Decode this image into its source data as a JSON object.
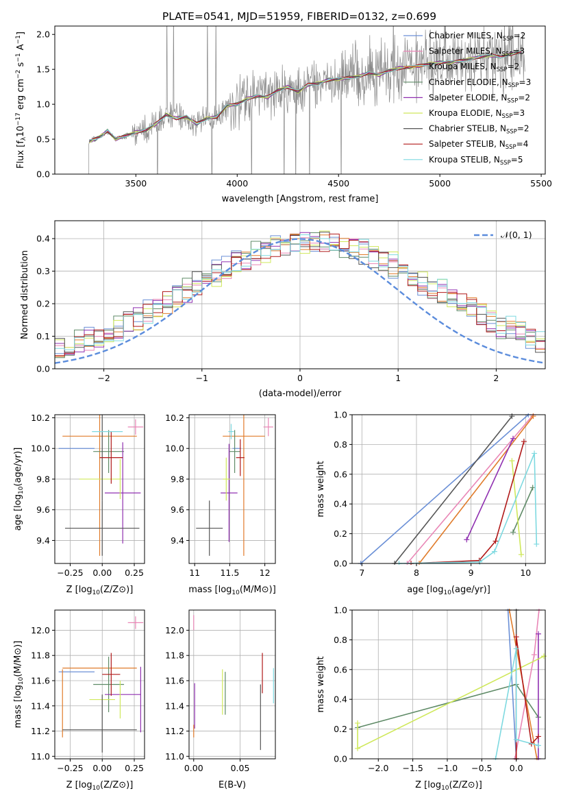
{
  "figure_title": "PLATE=0541, MJD=51959, FIBERID=0132, z=0.699",
  "colors": {
    "Chabrier MILES": "#6a8fd6",
    "Salpeter MILES": "#e986b6",
    "Kroupa MILES": "#e07b2a",
    "Chabrier ELODIE": "#5e8a66",
    "Salpeter ELODIE": "#8f2fb0",
    "Kroupa ELODIE": "#cfe85a",
    "Chabrier STELIB": "#555555",
    "Salpeter STELIB": "#b01818",
    "Kroupa STELIB": "#7dd9e0",
    "data": "#888888",
    "normal": "#5b8cdc",
    "grid": "#b0b0b0"
  },
  "chart_data": [
    {
      "id": "spectrum",
      "type": "line",
      "xlabel": "wavelength [Angstrom, rest frame]",
      "ylabel": "Flux [f_λ 10^-17 erg cm^-2 s^-1 A^-1]",
      "xlim": [
        3100,
        5520
      ],
      "ylim": [
        0,
        2.12
      ],
      "xticks": [
        3500,
        4000,
        4500,
        5000,
        5500
      ],
      "yticks": [
        0.0,
        0.5,
        1.0,
        1.5,
        2.0
      ],
      "grid": false,
      "legend_position": "top-right",
      "legend": [
        {
          "name": "Chabrier MILES",
          "nssp": "2"
        },
        {
          "name": "Salpeter MILES",
          "nssp": "3"
        },
        {
          "name": "Kroupa MILES",
          "nssp": "2"
        },
        {
          "name": "Chabrier ELODIE",
          "nssp": "3"
        },
        {
          "name": "Salpeter ELODIE",
          "nssp": "2"
        },
        {
          "name": "Kroupa ELODIE",
          "nssp": "3"
        },
        {
          "name": "Chabrier STELIB",
          "nssp": "2"
        },
        {
          "name": "Salpeter STELIB",
          "nssp": "4"
        },
        {
          "name": "Kroupa STELIB",
          "nssp": "5"
        }
      ],
      "model_x": [
        3270,
        3300,
        3330,
        3360,
        3400,
        3450,
        3500,
        3550,
        3600,
        3650,
        3700,
        3750,
        3800,
        3850,
        3900,
        3950,
        4000,
        4050,
        4100,
        4150,
        4200,
        4250,
        4300,
        4350,
        4400,
        4450,
        4500,
        4550,
        4600,
        4650,
        4700,
        4750,
        4800,
        4850,
        4900,
        4950,
        5000,
        5050,
        5100,
        5150,
        5200,
        5250,
        5300,
        5350,
        5400
      ],
      "model_y": [
        0.47,
        0.5,
        0.55,
        0.62,
        0.5,
        0.55,
        0.6,
        0.63,
        0.72,
        0.85,
        0.8,
        0.82,
        0.72,
        0.8,
        0.82,
        0.98,
        1.0,
        1.08,
        1.12,
        1.1,
        1.2,
        1.25,
        1.18,
        1.28,
        1.3,
        1.35,
        1.36,
        1.38,
        1.4,
        1.45,
        1.42,
        1.48,
        1.52,
        1.53,
        1.55,
        1.58,
        1.6,
        1.6,
        1.62,
        1.65,
        1.68,
        1.7,
        1.68,
        1.72,
        1.75
      ],
      "data_noise_note": ""
    },
    {
      "id": "residuals",
      "type": "area",
      "xlabel": "(data-model)/error",
      "ylabel": "Normed distribution",
      "xlim": [
        -2.5,
        2.5
      ],
      "ylim": [
        0,
        0.455
      ],
      "xticks": [
        -2,
        -1,
        0,
        1,
        2
      ],
      "yticks": [
        0.0,
        0.1,
        0.2,
        0.3,
        0.4
      ],
      "grid": true,
      "legend_position": "top-right",
      "legend": [
        {
          "name": "𝒩(0, 1)"
        }
      ],
      "bin_width": 0.1
    },
    {
      "id": "age-vs-Z",
      "type": "scatter",
      "xlabel": "Z [log10(Z/Z⊙)]",
      "ylabel": "age [log10(age/yr)]",
      "xlim": [
        -0.37,
        0.33
      ],
      "ylim": [
        9.25,
        10.22
      ],
      "xticks": [
        -0.25,
        0.0,
        0.25
      ],
      "xtick_labels": [
        "−0.25",
        "0.00",
        "0.25"
      ],
      "yticks": [
        9.4,
        9.6,
        9.8,
        10.0,
        10.2
      ],
      "grid": true,
      "points": [
        {
          "model": "Chabrier MILES",
          "x": -0.2,
          "y": 10.0,
          "xerr": 0.14,
          "yerr": 0.0
        },
        {
          "model": "Salpeter MILES",
          "x": 0.26,
          "y": 10.14,
          "xerr": 0.06,
          "yerr": 0.05
        },
        {
          "model": "Kroupa MILES",
          "x": -0.02,
          "y": 10.08,
          "xerr": 0.29,
          "yerr": 0.78
        },
        {
          "model": "Chabrier ELODIE",
          "x": 0.05,
          "y": 9.98,
          "xerr": 0.12,
          "yerr": 0.14
        },
        {
          "model": "Salpeter ELODIE",
          "x": 0.16,
          "y": 9.71,
          "xerr": 0.14,
          "yerr": 0.33
        },
        {
          "model": "Kroupa ELODIE",
          "x": -0.02,
          "y": 9.8,
          "xerr": 0.16,
          "yerr": 0.0
        },
        {
          "model": "Kroupa ELODIE",
          "x": 0.14,
          "y": 9.8,
          "xerr": 0.0,
          "yerr": 0.13
        },
        {
          "model": "Chabrier STELIB",
          "x": 0.0,
          "y": 9.48,
          "xerr": 0.29,
          "yerr": 0.18
        },
        {
          "model": "Chabrier STELIB",
          "x": 0.0,
          "y": 9.98,
          "xerr": 0.0,
          "yerr": 0.32
        },
        {
          "model": "Salpeter STELIB",
          "x": 0.07,
          "y": 9.94,
          "xerr": 0.09,
          "yerr": 0.17
        },
        {
          "model": "Kroupa STELIB",
          "x": 0.04,
          "y": 10.11,
          "xerr": 0.12,
          "yerr": 0.0
        }
      ]
    },
    {
      "id": "age-vs-mass",
      "type": "scatter",
      "xlabel": "mass [log10(M/M⊙)]",
      "ylabel": "",
      "xlim": [
        10.92,
        12.15
      ],
      "ylim": [
        9.25,
        10.22
      ],
      "xticks": [
        11.0,
        11.5,
        12.0
      ],
      "yticks": [
        9.4,
        9.6,
        9.8,
        10.0,
        10.2
      ],
      "grid": true,
      "points": [
        {
          "model": "Chabrier MILES",
          "x": 11.6,
          "y": 10.0,
          "xerr": 0.06,
          "yerr": 0.0
        },
        {
          "model": "Salpeter MILES",
          "x": 12.05,
          "y": 10.14,
          "xerr": 0.07,
          "yerr": 0.06
        },
        {
          "model": "Kroupa MILES",
          "x": 11.7,
          "y": 10.08,
          "xerr": 0.3,
          "yerr": 0.78
        },
        {
          "model": "Chabrier ELODIE",
          "x": 11.57,
          "y": 9.98,
          "xerr": 0.08,
          "yerr": 0.14
        },
        {
          "model": "Salpeter ELODIE",
          "x": 11.49,
          "y": 9.71,
          "xerr": 0.12,
          "yerr": 0.32
        },
        {
          "model": "Kroupa ELODIE",
          "x": 11.45,
          "y": 9.8,
          "xerr": 0.05,
          "yerr": 0.14
        },
        {
          "model": "Chabrier STELIB",
          "x": 11.21,
          "y": 9.48,
          "xerr": 0.19,
          "yerr": 0.18
        },
        {
          "model": "Chabrier STELIB",
          "x": 11.21,
          "y": 9.48,
          "xerr": 0.0,
          "yerr": 0.0
        },
        {
          "model": "Salpeter STELIB",
          "x": 11.65,
          "y": 9.94,
          "xerr": 0.06,
          "yerr": 0.12
        },
        {
          "model": "Kroupa STELIB",
          "x": 11.52,
          "y": 10.11,
          "xerr": 0.04,
          "yerr": 0.05
        }
      ]
    },
    {
      "id": "weight-vs-age",
      "type": "line",
      "xlabel": "age [log10(age/yr)]",
      "ylabel": "mass weight",
      "xlim": [
        6.82,
        10.36
      ],
      "ylim": [
        0,
        1
      ],
      "xticks": [
        7,
        8,
        9,
        10
      ],
      "yticks": [
        0.0,
        0.2,
        0.4,
        0.6,
        0.8,
        1.0
      ],
      "grid": true,
      "series": [
        {
          "model": "Chabrier MILES",
          "x": [
            6.98,
            10.05
          ],
          "y": [
            0.0,
            1.0
          ]
        },
        {
          "model": "Salpeter MILES",
          "x": [
            7.83,
            10.14
          ],
          "y": [
            0.0,
            1.0
          ]
        },
        {
          "model": "Kroupa MILES",
          "x": [
            8.05,
            10.14
          ],
          "y": [
            0.0,
            0.99
          ]
        },
        {
          "model": "Chabrier ELODIE",
          "x": [
            9.77,
            10.13
          ],
          "y": [
            0.21,
            0.51
          ]
        },
        {
          "model": "Salpeter ELODIE",
          "x": [
            8.92,
            9.77
          ],
          "y": [
            0.16,
            0.84
          ]
        },
        {
          "model": "Kroupa ELODIE",
          "x": [
            9.75,
            9.92
          ],
          "y": [
            0.69,
            0.06
          ]
        },
        {
          "model": "Chabrier STELIB",
          "x": [
            7.6,
            9.75
          ],
          "y": [
            0.0,
            0.99
          ]
        },
        {
          "model": "Salpeter STELIB",
          "x": [
            7.9,
            9.15,
            9.45,
            9.97
          ],
          "y": [
            0.0,
            0.02,
            0.15,
            0.82
          ]
        },
        {
          "model": "Kroupa STELIB",
          "x": [
            7.68,
            9.16,
            9.43,
            10.16,
            10.2
          ],
          "y": [
            0.0,
            0.01,
            0.08,
            0.74,
            0.13
          ]
        }
      ]
    },
    {
      "id": "mass-vs-Z",
      "type": "scatter",
      "xlabel": "Z [log10(Z/Z⊙)]",
      "ylabel": "mass [log10(M/M⊙)]",
      "xlim": [
        -0.37,
        0.33
      ],
      "ylim": [
        10.98,
        12.16
      ],
      "xticks": [
        -0.25,
        0.0,
        0.25
      ],
      "xtick_labels": [
        "−0.25",
        "0.00",
        "0.25"
      ],
      "yticks": [
        11.0,
        11.2,
        11.4,
        11.6,
        11.8,
        12.0
      ],
      "grid": true,
      "points": [
        {
          "model": "Chabrier MILES",
          "x": -0.2,
          "y": 11.67,
          "xerr": 0.14,
          "yerr": 0.0
        },
        {
          "model": "Salpeter MILES",
          "x": 0.26,
          "y": 12.06,
          "xerr": 0.06,
          "yerr": 0.05
        },
        {
          "model": "Kroupa MILES",
          "x": -0.02,
          "y": 11.7,
          "xerr": 0.29,
          "yerr": 0.0
        },
        {
          "model": "Kroupa MILES",
          "x": -0.31,
          "y": 11.42,
          "xerr": 0.0,
          "yerr": 0.27
        },
        {
          "model": "Chabrier ELODIE",
          "x": 0.05,
          "y": 11.57,
          "xerr": 0.12,
          "yerr": 0.22
        },
        {
          "model": "Salpeter ELODIE",
          "x": 0.16,
          "y": 11.49,
          "xerr": 0.14,
          "yerr": 0.0
        },
        {
          "model": "Salpeter ELODIE",
          "x": 0.3,
          "y": 11.45,
          "xerr": 0.0,
          "yerr": 0.26
        },
        {
          "model": "Kroupa ELODIE",
          "x": 0.0,
          "y": 11.45,
          "xerr": 0.1,
          "yerr": 0.0
        },
        {
          "model": "Kroupa ELODIE",
          "x": 0.14,
          "y": 11.45,
          "xerr": 0.0,
          "yerr": 0.15
        },
        {
          "model": "Chabrier STELIB",
          "x": -0.02,
          "y": 11.21,
          "xerr": 0.29,
          "yerr": 0.0
        },
        {
          "model": "Chabrier STELIB",
          "x": 0.0,
          "y": 11.26,
          "xerr": 0.0,
          "yerr": 0.23
        },
        {
          "model": "Salpeter STELIB",
          "x": 0.07,
          "y": 11.65,
          "xerr": 0.07,
          "yerr": 0.17
        },
        {
          "model": "Kroupa STELIB",
          "x": 0.04,
          "y": 11.7,
          "xerr": 0.0,
          "yerr": 0.0
        }
      ]
    },
    {
      "id": "mass-vs-EBV",
      "type": "scatter",
      "xlabel": "E(B-V)",
      "ylabel": "",
      "xlim": [
        -0.005,
        0.088
      ],
      "ylim": [
        10.98,
        12.16
      ],
      "xticks": [
        0.0,
        0.05
      ],
      "xtick_labels": [
        "0.00",
        "0.05"
      ],
      "yticks": [
        11.0,
        11.2,
        11.4,
        11.6,
        11.8,
        12.0
      ],
      "grid": true,
      "points": [
        {
          "model": "Chabrier MILES",
          "x": 0.001,
          "y": 11.67,
          "xerr": 0.0,
          "yerr": 0.0
        },
        {
          "model": "Salpeter MILES",
          "x": 0.0,
          "y": 12.06,
          "xerr": 0.0,
          "yerr": 0.06
        },
        {
          "model": "Kroupa MILES",
          "x": 0.0,
          "y": 11.2,
          "xerr": 0.0,
          "yerr": 0.05
        },
        {
          "model": "Salpeter ELODIE",
          "x": 0.001,
          "y": 11.4,
          "xerr": 0.0,
          "yerr": 0.18
        },
        {
          "model": "Chabrier ELODIE",
          "x": 0.034,
          "y": 11.5,
          "xerr": 0.0,
          "yerr": 0.17
        },
        {
          "model": "Kroupa ELODIE",
          "x": 0.031,
          "y": 11.51,
          "xerr": 0.0,
          "yerr": 0.18
        },
        {
          "model": "Chabrier STELIB",
          "x": 0.072,
          "y": 11.31,
          "xerr": 0.0,
          "yerr": 0.26
        },
        {
          "model": "Salpeter STELIB",
          "x": 0.074,
          "y": 11.66,
          "xerr": 0.0,
          "yerr": 0.16
        },
        {
          "model": "Kroupa STELIB",
          "x": 0.086,
          "y": 11.56,
          "xerr": 0.0,
          "yerr": 0.14
        }
      ]
    },
    {
      "id": "weight-vs-Z",
      "type": "line",
      "xlabel": "Z [log10(Z/Z⊙)]",
      "ylabel": "mass weight",
      "xlim": [
        -2.38,
        0.42
      ],
      "ylim": [
        0,
        1
      ],
      "xticks": [
        -2.0,
        -1.5,
        -1.0,
        -0.5,
        0.0
      ],
      "xtick_labels": [
        "−2.0",
        "−1.5",
        "−1.0",
        "−0.5",
        "0.0"
      ],
      "yticks": [
        0.0,
        0.2,
        0.4,
        0.6,
        0.8,
        1.0
      ],
      "grid": true,
      "series": [
        {
          "model": "Chabrier MILES",
          "x": [
            -0.12,
            0.0
          ],
          "y": [
            1.0,
            0.0
          ]
        },
        {
          "model": "Salpeter MILES",
          "x": [
            -0.02,
            0.26,
            0.33
          ],
          "y": [
            0.0,
            0.7,
            1.0
          ]
        },
        {
          "model": "Kroupa MILES",
          "x": [
            -0.1,
            0.3
          ],
          "y": [
            1.0,
            0.0
          ]
        },
        {
          "model": "Chabrier ELODIE",
          "x": [
            -2.3,
            0.0,
            0.32
          ],
          "y": [
            0.21,
            0.5,
            0.28
          ]
        },
        {
          "model": "Salpeter ELODIE",
          "x": [
            0.32,
            0.32
          ],
          "y": [
            0.0,
            0.84
          ]
        },
        {
          "model": "Kroupa ELODIE",
          "x": [
            -2.3,
            -2.3,
            0.4
          ],
          "y": [
            0.24,
            0.07,
            0.69
          ]
        },
        {
          "model": "Chabrier STELIB",
          "x": [
            0.0,
            0.0
          ],
          "y": [
            0.0,
            1.0
          ]
        },
        {
          "model": "Salpeter STELIB",
          "x": [
            0.0,
            0.0,
            0.22,
            0.32
          ],
          "y": [
            0.0,
            0.82,
            0.1,
            0.15
          ]
        },
        {
          "model": "Kroupa STELIB",
          "x": [
            -0.3,
            0.0,
            0.0,
            0.32
          ],
          "y": [
            0.0,
            0.74,
            0.13,
            0.09
          ]
        }
      ]
    }
  ]
}
